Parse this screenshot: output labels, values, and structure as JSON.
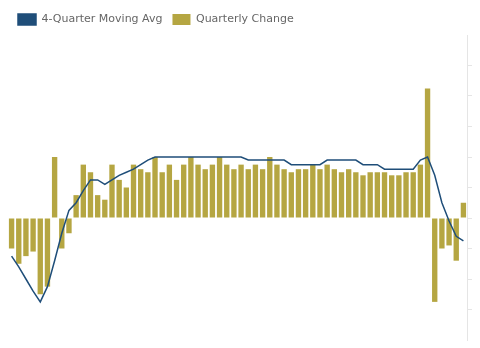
{
  "chart_data": {
    "type": "bar",
    "categories": [
      null,
      null,
      null,
      null,
      null,
      null,
      null,
      null,
      null,
      null,
      null,
      null,
      null,
      null,
      null,
      null,
      null,
      null,
      null,
      null,
      null,
      null,
      null,
      null,
      null,
      null,
      null,
      null,
      null,
      null,
      null,
      null,
      null,
      null,
      null,
      null,
      null,
      null,
      null,
      null,
      null,
      null,
      null,
      null,
      null,
      null,
      null,
      null,
      null,
      null,
      null,
      null,
      null,
      null,
      null,
      null,
      null,
      null,
      null,
      null,
      null,
      null,
      null,
      null
    ],
    "series": [
      {
        "name": "Quarterly Change",
        "type": "bar",
        "color": "#b5a642",
        "values": [
          -2.0,
          -3.0,
          -2.5,
          -2.2,
          -5.0,
          -4.5,
          4.0,
          -2.0,
          -1.0,
          1.5,
          3.5,
          3.0,
          1.5,
          1.2,
          3.5,
          2.5,
          2.0,
          3.5,
          3.2,
          3.0,
          4.0,
          3.0,
          3.5,
          2.5,
          3.5,
          4.0,
          3.5,
          3.2,
          3.5,
          4.0,
          3.5,
          3.2,
          3.5,
          3.2,
          3.5,
          3.2,
          4.0,
          3.5,
          3.2,
          3.0,
          3.2,
          3.2,
          3.5,
          3.2,
          3.5,
          3.2,
          3.0,
          3.2,
          3.0,
          2.8,
          3.0,
          3.0,
          3.0,
          2.8,
          2.8,
          3.0,
          3.0,
          3.5,
          8.5,
          -5.5,
          -2.0,
          -1.8,
          -2.8,
          1.0
        ]
      },
      {
        "name": "4-Quarter Moving Avg",
        "type": "line",
        "color": "#1f4e79",
        "values": [
          -2.5,
          -3.2,
          -4.0,
          -4.8,
          -5.5,
          -4.5,
          -2.8,
          -1.0,
          0.5,
          1.0,
          1.8,
          2.5,
          2.5,
          2.2,
          2.5,
          2.8,
          3.0,
          3.2,
          3.5,
          3.8,
          4.0,
          4.0,
          4.0,
          4.0,
          4.0,
          4.0,
          4.0,
          4.0,
          4.0,
          4.0,
          4.0,
          4.0,
          4.0,
          3.8,
          3.8,
          3.8,
          3.8,
          3.8,
          3.8,
          3.5,
          3.5,
          3.5,
          3.5,
          3.5,
          3.8,
          3.8,
          3.8,
          3.8,
          3.8,
          3.5,
          3.5,
          3.5,
          3.2,
          3.2,
          3.2,
          3.2,
          3.2,
          3.8,
          4.0,
          2.8,
          1.0,
          -0.2,
          -1.2,
          -1.5
        ]
      }
    ],
    "ylim": [
      -8,
      12
    ],
    "yticks": [
      -6,
      -4,
      -2,
      0,
      2,
      4,
      6,
      8,
      10
    ],
    "grid": false,
    "legend": "upper left",
    "tick_labels": false
  }
}
